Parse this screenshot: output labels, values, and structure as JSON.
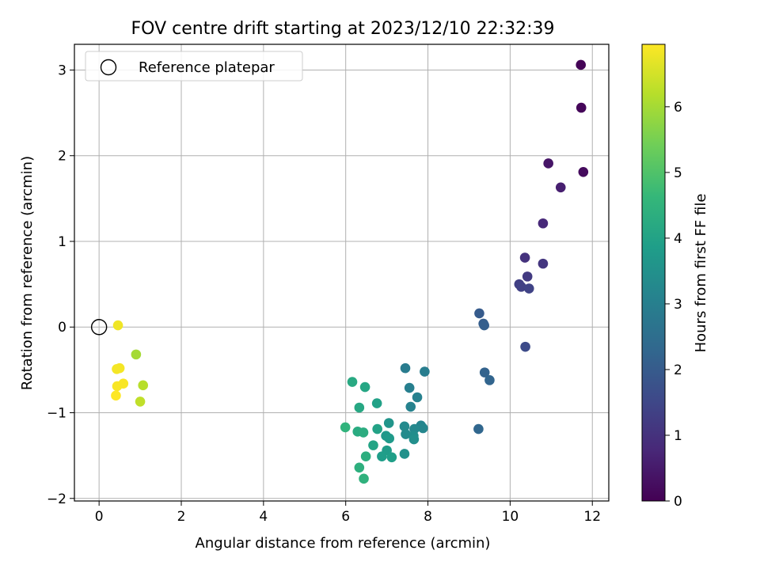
{
  "chart_data": {
    "type": "scatter",
    "title": "FOV centre drift starting at 2023/12/10 22:32:39",
    "xlabel": "Angular distance from reference (arcmin)",
    "ylabel": "Rotation from reference (arcmin)",
    "xlim": [
      -0.6,
      12.4
    ],
    "ylim": [
      -2.03,
      3.3
    ],
    "xticks": [
      0,
      2,
      4,
      6,
      8,
      10,
      12
    ],
    "xtick_labels": [
      "0",
      "2",
      "4",
      "6",
      "8",
      "10",
      "12"
    ],
    "yticks": [
      -2,
      -1,
      0,
      1,
      2,
      3
    ],
    "ytick_labels": [
      "−2",
      "−1",
      "0",
      "1",
      "2",
      "3"
    ],
    "grid": true,
    "legend": {
      "position": "top-left",
      "entries": [
        "Reference platepar"
      ]
    },
    "reference_point": {
      "x": 0,
      "y": 0
    },
    "colorbar": {
      "label": "Hours from first FF file",
      "colormap": "viridis",
      "min": 0,
      "max": 6.95,
      "ticks": [
        0,
        1,
        2,
        3,
        4,
        5,
        6
      ],
      "tick_labels": [
        "0",
        "1",
        "2",
        "3",
        "4",
        "5",
        "6"
      ]
    },
    "colormap_stops": [
      "#440154",
      "#482878",
      "#3e4989",
      "#31688e",
      "#26828e",
      "#1f9e89",
      "#35b779",
      "#6ece58",
      "#b5de2b",
      "#fde725"
    ],
    "points": [
      {
        "x": 11.72,
        "y": 3.06,
        "c": 0.05
      },
      {
        "x": 11.73,
        "y": 2.56,
        "c": 0.1
      },
      {
        "x": 11.78,
        "y": 1.81,
        "c": 0.2
      },
      {
        "x": 10.93,
        "y": 1.91,
        "c": 0.4
      },
      {
        "x": 11.23,
        "y": 1.63,
        "c": 0.6
      },
      {
        "x": 10.8,
        "y": 1.21,
        "c": 0.8
      },
      {
        "x": 10.36,
        "y": 0.81,
        "c": 1.0
      },
      {
        "x": 10.8,
        "y": 0.74,
        "c": 1.1
      },
      {
        "x": 10.42,
        "y": 0.59,
        "c": 1.2
      },
      {
        "x": 10.22,
        "y": 0.5,
        "c": 1.3
      },
      {
        "x": 10.27,
        "y": 0.47,
        "c": 1.35
      },
      {
        "x": 10.46,
        "y": 0.45,
        "c": 1.4
      },
      {
        "x": 10.37,
        "y": -0.23,
        "c": 1.6
      },
      {
        "x": 9.25,
        "y": 0.16,
        "c": 2.0
      },
      {
        "x": 9.35,
        "y": 0.04,
        "c": 2.05
      },
      {
        "x": 9.37,
        "y": 0.02,
        "c": 2.1
      },
      {
        "x": 9.38,
        "y": -0.53,
        "c": 2.2
      },
      {
        "x": 9.5,
        "y": -0.62,
        "c": 2.25
      },
      {
        "x": 9.23,
        "y": -1.19,
        "c": 2.3
      },
      {
        "x": 7.45,
        "y": -0.48,
        "c": 2.9
      },
      {
        "x": 7.92,
        "y": -0.52,
        "c": 2.95
      },
      {
        "x": 7.55,
        "y": -0.71,
        "c": 3.0
      },
      {
        "x": 7.74,
        "y": -0.82,
        "c": 3.05
      },
      {
        "x": 7.58,
        "y": -0.93,
        "c": 3.1
      },
      {
        "x": 7.83,
        "y": -1.15,
        "c": 3.15
      },
      {
        "x": 7.88,
        "y": -1.18,
        "c": 3.2
      },
      {
        "x": 7.67,
        "y": -1.19,
        "c": 3.25
      },
      {
        "x": 7.43,
        "y": -1.16,
        "c": 3.3
      },
      {
        "x": 7.46,
        "y": -1.25,
        "c": 3.35
      },
      {
        "x": 7.65,
        "y": -1.27,
        "c": 3.4
      },
      {
        "x": 7.66,
        "y": -1.31,
        "c": 3.45
      },
      {
        "x": 7.43,
        "y": -1.48,
        "c": 3.5
      },
      {
        "x": 7.05,
        "y": -1.12,
        "c": 3.6
      },
      {
        "x": 6.98,
        "y": -1.27,
        "c": 3.7
      },
      {
        "x": 7.06,
        "y": -1.3,
        "c": 3.75
      },
      {
        "x": 7.0,
        "y": -1.44,
        "c": 3.8
      },
      {
        "x": 6.88,
        "y": -1.51,
        "c": 3.85
      },
      {
        "x": 7.12,
        "y": -1.52,
        "c": 3.9
      },
      {
        "x": 6.76,
        "y": -0.89,
        "c": 3.95
      },
      {
        "x": 6.77,
        "y": -1.19,
        "c": 4.0
      },
      {
        "x": 6.67,
        "y": -1.38,
        "c": 4.05
      },
      {
        "x": 6.47,
        "y": -0.7,
        "c": 4.1
      },
      {
        "x": 6.33,
        "y": -0.94,
        "c": 4.15
      },
      {
        "x": 6.16,
        "y": -0.64,
        "c": 4.2
      },
      {
        "x": 6.29,
        "y": -1.22,
        "c": 4.25
      },
      {
        "x": 6.43,
        "y": -1.23,
        "c": 4.3
      },
      {
        "x": 6.49,
        "y": -1.51,
        "c": 4.35
      },
      {
        "x": 6.33,
        "y": -1.64,
        "c": 4.4
      },
      {
        "x": 6.44,
        "y": -1.77,
        "c": 4.45
      },
      {
        "x": 5.99,
        "y": -1.17,
        "c": 4.5
      },
      {
        "x": 0.9,
        "y": -0.32,
        "c": 6.0
      },
      {
        "x": 1.07,
        "y": -0.68,
        "c": 6.2
      },
      {
        "x": 1.0,
        "y": -0.87,
        "c": 6.3
      },
      {
        "x": 0.46,
        "y": 0.02,
        "c": 6.8
      },
      {
        "x": 0.43,
        "y": -0.49,
        "c": 6.85
      },
      {
        "x": 0.5,
        "y": -0.48,
        "c": 6.85
      },
      {
        "x": 0.44,
        "y": -0.69,
        "c": 6.9
      },
      {
        "x": 0.59,
        "y": -0.66,
        "c": 6.9
      },
      {
        "x": 0.41,
        "y": -0.8,
        "c": 6.95
      }
    ]
  }
}
